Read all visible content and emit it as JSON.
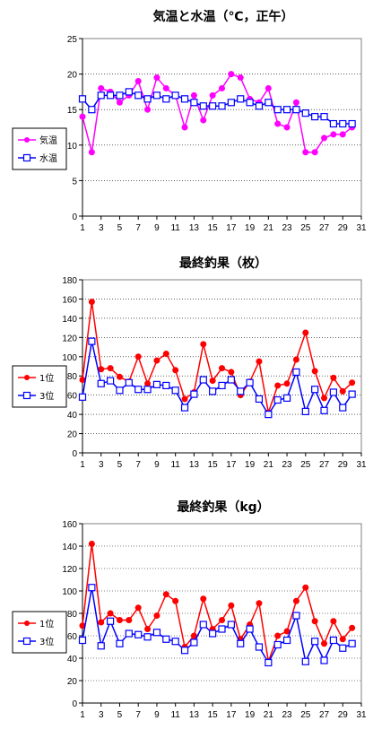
{
  "chart_data": [
    {
      "type": "line",
      "title": "気温と水温（℃，正午）",
      "xlim": [
        1,
        31
      ],
      "ylim": [
        0,
        25
      ],
      "xticks": [
        1,
        3,
        5,
        7,
        9,
        11,
        13,
        15,
        17,
        19,
        21,
        23,
        25,
        27,
        29,
        31
      ],
      "yticks": [
        0,
        5,
        10,
        15,
        20,
        25
      ],
      "x": [
        1,
        2,
        3,
        4,
        5,
        6,
        7,
        8,
        9,
        10,
        11,
        12,
        13,
        14,
        15,
        16,
        17,
        18,
        19,
        20,
        21,
        22,
        23,
        24,
        25,
        26,
        27,
        28,
        29,
        30
      ],
      "legend_position": "left",
      "grid": "horizontal dotted",
      "series": [
        {
          "name": "気温",
          "color": "#ff00ff",
          "marker": "filled-circle",
          "values": [
            14,
            9,
            18,
            17.5,
            16,
            17,
            19,
            15,
            19.5,
            18,
            17,
            12.5,
            17,
            13.5,
            17,
            18,
            20,
            19.5,
            16.5,
            16,
            18,
            13,
            12.5,
            16,
            9,
            9,
            11,
            11.5,
            11.5,
            12.5
          ]
        },
        {
          "name": "水温",
          "color": "#0000ff",
          "marker": "open-square",
          "values": [
            16.5,
            15,
            17,
            17,
            17,
            17.5,
            17,
            16.5,
            17,
            16.5,
            17,
            16.5,
            16,
            15.5,
            15.5,
            15.5,
            16,
            16.5,
            16,
            15.5,
            16,
            15,
            15,
            15,
            14.5,
            14,
            14,
            13,
            13,
            13
          ]
        }
      ]
    },
    {
      "type": "line",
      "title": "最終釣果（枚）",
      "xlim": [
        1,
        31
      ],
      "ylim": [
        0,
        180
      ],
      "xticks": [
        1,
        3,
        5,
        7,
        9,
        11,
        13,
        15,
        17,
        19,
        21,
        23,
        25,
        27,
        29,
        31
      ],
      "yticks": [
        0,
        20,
        40,
        60,
        80,
        100,
        120,
        140,
        160,
        180
      ],
      "x": [
        1,
        2,
        3,
        4,
        5,
        6,
        7,
        8,
        9,
        10,
        11,
        12,
        13,
        14,
        15,
        16,
        17,
        18,
        19,
        20,
        21,
        22,
        23,
        24,
        25,
        26,
        27,
        28,
        29,
        30
      ],
      "legend_position": "left",
      "grid": "horizontal dotted",
      "series": [
        {
          "name": "1位",
          "color": "#ff0000",
          "marker": "filled-circle",
          "values": [
            76,
            157,
            87,
            88,
            79,
            74,
            100,
            72,
            96,
            103,
            86,
            56,
            63,
            113,
            75,
            88,
            84,
            60,
            74,
            95,
            42,
            70,
            72,
            97,
            125,
            85,
            57,
            78,
            64,
            73
          ]
        },
        {
          "name": "3位",
          "color": "#0000ff",
          "marker": "open-square",
          "values": [
            58,
            116,
            72,
            75,
            65,
            73,
            66,
            66,
            71,
            70,
            65,
            47,
            61,
            76,
            64,
            70,
            76,
            64,
            73,
            56,
            40,
            55,
            57,
            84,
            43,
            66,
            44,
            63,
            47,
            61
          ]
        }
      ]
    },
    {
      "type": "line",
      "title": "最終釣果（kg）",
      "xlim": [
        1,
        31
      ],
      "ylim": [
        0,
        160
      ],
      "xticks": [
        1,
        3,
        5,
        7,
        9,
        11,
        13,
        15,
        17,
        19,
        21,
        23,
        25,
        27,
        29,
        31
      ],
      "yticks": [
        0,
        20,
        40,
        60,
        80,
        100,
        120,
        140,
        160
      ],
      "x": [
        1,
        2,
        3,
        4,
        5,
        6,
        7,
        8,
        9,
        10,
        11,
        12,
        13,
        14,
        15,
        16,
        17,
        18,
        19,
        20,
        21,
        22,
        23,
        24,
        25,
        26,
        27,
        28,
        29,
        30
      ],
      "legend_position": "left",
      "grid": "horizontal dotted",
      "series": [
        {
          "name": "1位",
          "color": "#ff0000",
          "marker": "filled-circle",
          "values": [
            69,
            142,
            72,
            80,
            74,
            74,
            85,
            66,
            78,
            97,
            91,
            50,
            60,
            93,
            66,
            74,
            87,
            57,
            70,
            89,
            37,
            60,
            64,
            91,
            103,
            73,
            53,
            73,
            57,
            67
          ]
        },
        {
          "name": "3位",
          "color": "#0000ff",
          "marker": "open-square",
          "values": [
            56,
            103,
            51,
            73,
            53,
            62,
            61,
            59,
            63,
            57,
            55,
            47,
            54,
            70,
            62,
            66,
            70,
            53,
            66,
            50,
            36,
            52,
            56,
            78,
            37,
            55,
            38,
            56,
            49,
            53
          ]
        }
      ]
    }
  ]
}
